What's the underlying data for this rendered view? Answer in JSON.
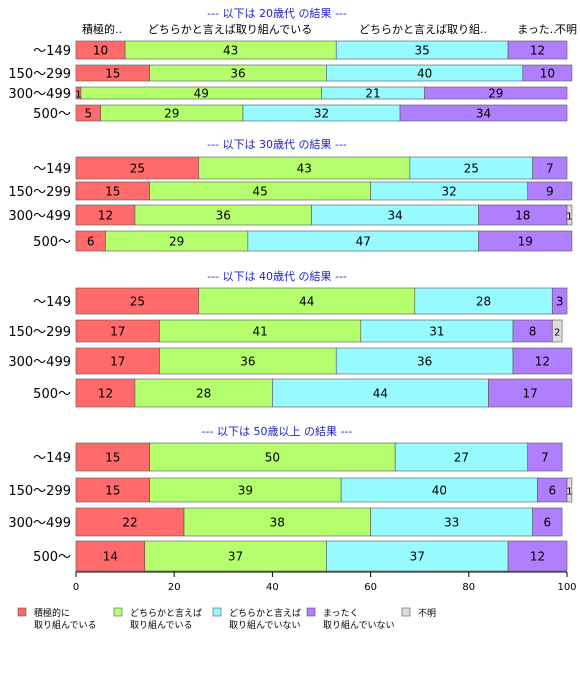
{
  "chart_data": {
    "type": "bar",
    "orientation": "horizontal",
    "stacked": true,
    "xlim": [
      0,
      100
    ],
    "x_ticks": [
      0,
      20,
      40,
      60,
      80,
      100
    ],
    "column_headers": [
      "積極的..",
      "どちらかと言えば取り組んでいる",
      "どちらかと言えば取り組..",
      "まった..",
      "不明"
    ],
    "legend": {
      "placement": "bottom-left",
      "items": [
        {
          "label": "積極的に\n取り組んでいる",
          "color": "#ff6b6b"
        },
        {
          "label": "どちらかと言えば\n取り組んでいる",
          "color": "#b5ff6e"
        },
        {
          "label": "どちらかと言えば\n取り組んでいない",
          "color": "#96faff"
        },
        {
          "label": "まったく\n取り組んでいない",
          "color": "#b07fff"
        },
        {
          "label": "不明",
          "color": "#dcdcdc"
        }
      ]
    },
    "panels": [
      {
        "title": "--- 以下は 20歳代 の結果 ---",
        "categories": [
          "～149",
          "150～299",
          "300～499",
          "500～"
        ],
        "values": [
          [
            10,
            43,
            35,
            12,
            0
          ],
          [
            15,
            36,
            40,
            10,
            0
          ],
          [
            1,
            49,
            21,
            29,
            0
          ],
          [
            5,
            29,
            32,
            34,
            0
          ]
        ]
      },
      {
        "title": "--- 以下は 30歳代 の結果 ---",
        "categories": [
          "～149",
          "150～299",
          "300～499",
          "500～"
        ],
        "values": [
          [
            25,
            43,
            25,
            7,
            0
          ],
          [
            15,
            45,
            32,
            9,
            0
          ],
          [
            12,
            36,
            34,
            18,
            1
          ],
          [
            6,
            29,
            47,
            19,
            0
          ]
        ]
      },
      {
        "title": "--- 以下は 40歳代 の結果 ---",
        "categories": [
          "～149",
          "150～299",
          "300～499",
          "500～"
        ],
        "values": [
          [
            25,
            44,
            28,
            3,
            0
          ],
          [
            17,
            41,
            31,
            8,
            2
          ],
          [
            17,
            36,
            36,
            12,
            0
          ],
          [
            12,
            28,
            44,
            17,
            0
          ]
        ]
      },
      {
        "title": "--- 以下は 50歳以上 の結果 ---",
        "categories": [
          "～149",
          "150～299",
          "300～499",
          "500～"
        ],
        "values": [
          [
            15,
            50,
            27,
            7,
            0
          ],
          [
            15,
            39,
            40,
            6,
            1
          ],
          [
            22,
            38,
            33,
            6,
            0
          ],
          [
            14,
            37,
            37,
            12,
            0
          ]
        ]
      }
    ]
  }
}
